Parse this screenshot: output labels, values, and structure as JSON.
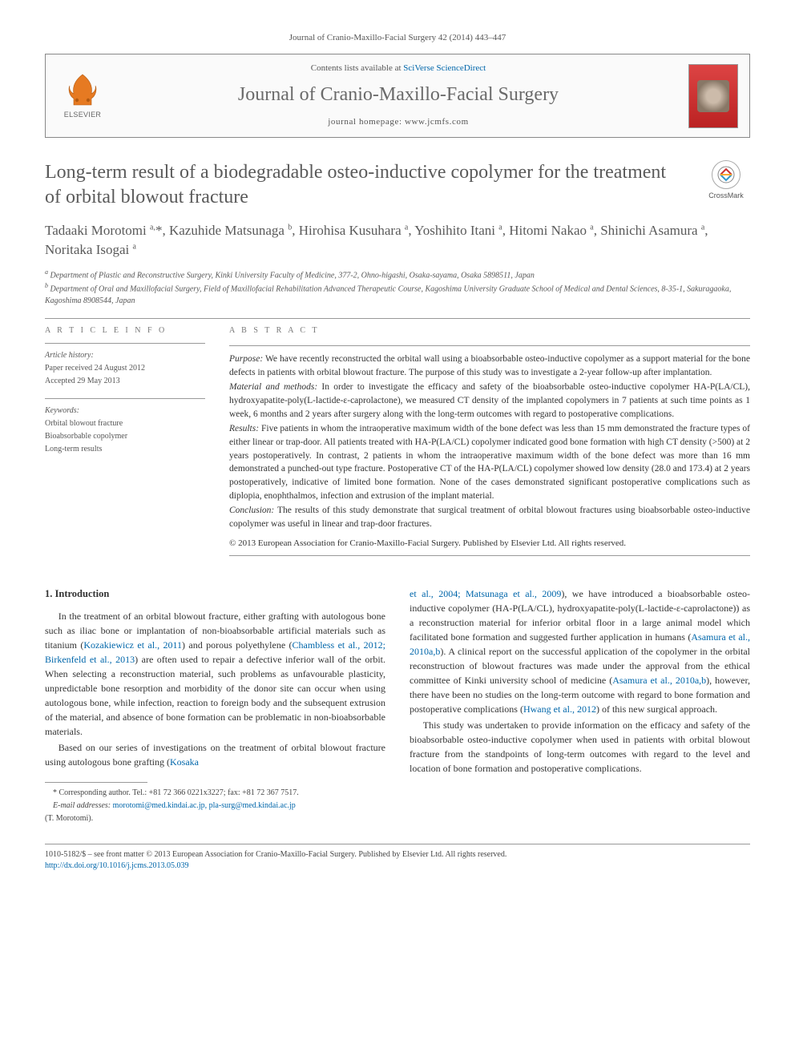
{
  "journal_ref": "Journal of Cranio-Maxillo-Facial Surgery 42 (2014) 443–447",
  "header": {
    "contents_prefix": "Contents lists available at ",
    "contents_link": "SciVerse ScienceDirect",
    "journal_name": "Journal of Cranio-Maxillo-Facial Surgery",
    "homepage_prefix": "journal homepage: ",
    "homepage_url": "www.jcmfs.com",
    "publisher": "ELSEVIER"
  },
  "crossmark": "CrossMark",
  "article": {
    "title": "Long-term result of a biodegradable osteo-inductive copolymer for the treatment of orbital blowout fracture",
    "authors_html": "Tadaaki Morotomi <sup>a,</sup>*, Kazuhide Matsunaga <sup>b</sup>, Hirohisa Kusuhara <sup>a</sup>, Yoshihito Itani <sup>a</sup>, Hitomi Nakao <sup>a</sup>, Shinichi Asamura <sup>a</sup>, Noritaka Isogai <sup>a</sup>",
    "affiliations": [
      "<sup>a</sup> Department of Plastic and Reconstructive Surgery, Kinki University Faculty of Medicine, 377-2, Ohno-higashi, Osaka-sayama, Osaka 5898511, Japan",
      "<sup>b</sup> Department of Oral and Maxillofacial Surgery, Field of Maxillofacial Rehabilitation Advanced Therapeutic Course, Kagoshima University Graduate School of Medical and Dental Sciences, 8-35-1, Sakuragaoka, Kagoshima 8908544, Japan"
    ]
  },
  "info": {
    "heading": "A R T I C L E   I N F O",
    "history_label": "Article history:",
    "history": [
      "Paper received 24 August 2012",
      "Accepted 29 May 2013"
    ],
    "keywords_label": "Keywords:",
    "keywords": [
      "Orbital blowout fracture",
      "Bioabsorbable copolymer",
      "Long-term results"
    ]
  },
  "abstract": {
    "heading": "A B S T R A C T",
    "sections": [
      {
        "label": "Purpose:",
        "text": "We have recently reconstructed the orbital wall using a bioabsorbable osteo-inductive copolymer as a support material for the bone defects in patients with orbital blowout fracture. The purpose of this study was to investigate a 2-year follow-up after implantation."
      },
      {
        "label": "Material and methods:",
        "text": "In order to investigate the efficacy and safety of the bioabsorbable osteo-inductive copolymer HA-P(LA/CL), hydroxyapatite-poly(L-lactide-ε-caprolactone), we measured CT density of the implanted copolymers in 7 patients at such time points as 1 week, 6 months and 2 years after surgery along with the long-term outcomes with regard to postoperative complications."
      },
      {
        "label": "Results:",
        "text": "Five patients in whom the intraoperative maximum width of the bone defect was less than 15 mm demonstrated the fracture types of either linear or trap-door. All patients treated with HA-P(LA/CL) copolymer indicated good bone formation with high CT density (>500) at 2 years postoperatively. In contrast, 2 patients in whom the intraoperative maximum width of the bone defect was more than 16 mm demonstrated a punched-out type fracture. Postoperative CT of the HA-P(LA/CL) copolymer showed low density (28.0 and 173.4) at 2 years postoperatively, indicative of limited bone formation. None of the cases demonstrated significant postoperative complications such as diplopia, enophthalmos, infection and extrusion of the implant material."
      },
      {
        "label": "Conclusion:",
        "text": "The results of this study demonstrate that surgical treatment of orbital blowout fractures using bioabsorbable osteo-inductive copolymer was useful in linear and trap-door fractures."
      }
    ],
    "copyright": "© 2013 European Association for Cranio-Maxillo-Facial Surgery. Published by Elsevier Ltd. All rights reserved."
  },
  "body": {
    "section_heading": "1. Introduction",
    "col1": [
      "In the treatment of an orbital blowout fracture, either grafting with autologous bone such as iliac bone or implantation of non-bioabsorbable artificial materials such as titanium (<span class='ref-link'>Kozakiewicz et al., 2011</span>) and porous polyethylene (<span class='ref-link'>Chambless et al., 2012; Birkenfeld et al., 2013</span>) are often used to repair a defective inferior wall of the orbit. When selecting a reconstruction material, such problems as unfavourable plasticity, unpredictable bone resorption and morbidity of the donor site can occur when using autologous bone, while infection, reaction to foreign body and the subsequent extrusion of the material, and absence of bone formation can be problematic in non-bioabsorbable materials.",
      "Based on our series of investigations on the treatment of orbital blowout fracture using autologous bone grafting (<span class='ref-link'>Kosaka</span>"
    ],
    "col2": [
      "<span class='ref-link'>et al., 2004; Matsunaga et al., 2009</span>), we have introduced a bioabsorbable osteo-inductive copolymer (HA-P(LA/CL), hydroxyapatite-poly(L-lactide-ε-caprolactone)) as a reconstruction material for inferior orbital floor in a large animal model which facilitated bone formation and suggested further application in humans (<span class='ref-link'>Asamura et al., 2010a,b</span>). A clinical report on the successful application of the copolymer in the orbital reconstruction of blowout fractures was made under the approval from the ethical committee of Kinki university school of medicine (<span class='ref-link'>Asamura et al., 2010a,b</span>), however, there have been no studies on the long-term outcome with regard to bone formation and postoperative complications (<span class='ref-link'>Hwang et al., 2012</span>) of this new surgical approach.",
      "This study was undertaken to provide information on the efficacy and safety of the bioabsorbable osteo-inductive copolymer when used in patients with orbital blowout fracture from the standpoints of long-term outcomes with regard to the level and location of bone formation and postoperative complications."
    ]
  },
  "footnotes": {
    "corresponding": "* Corresponding author. Tel.: +81 72 366 0221x3227; fax: +81 72 367 7517.",
    "email_label": "E-mail addresses:",
    "emails": "morotomi@med.kindai.ac.jp, pla-surg@med.kindai.ac.jp",
    "email_person": "(T. Morotomi)."
  },
  "footer": {
    "line1": "1010-5182/$ – see front matter © 2013 European Association for Cranio-Maxillo-Facial Surgery. Published by Elsevier Ltd. All rights reserved.",
    "doi": "http://dx.doi.org/10.1016/j.jcms.2013.05.039"
  },
  "colors": {
    "link": "#0066aa",
    "heading_gray": "#5a5a5a",
    "rule": "#999999",
    "body_text": "#333333"
  }
}
